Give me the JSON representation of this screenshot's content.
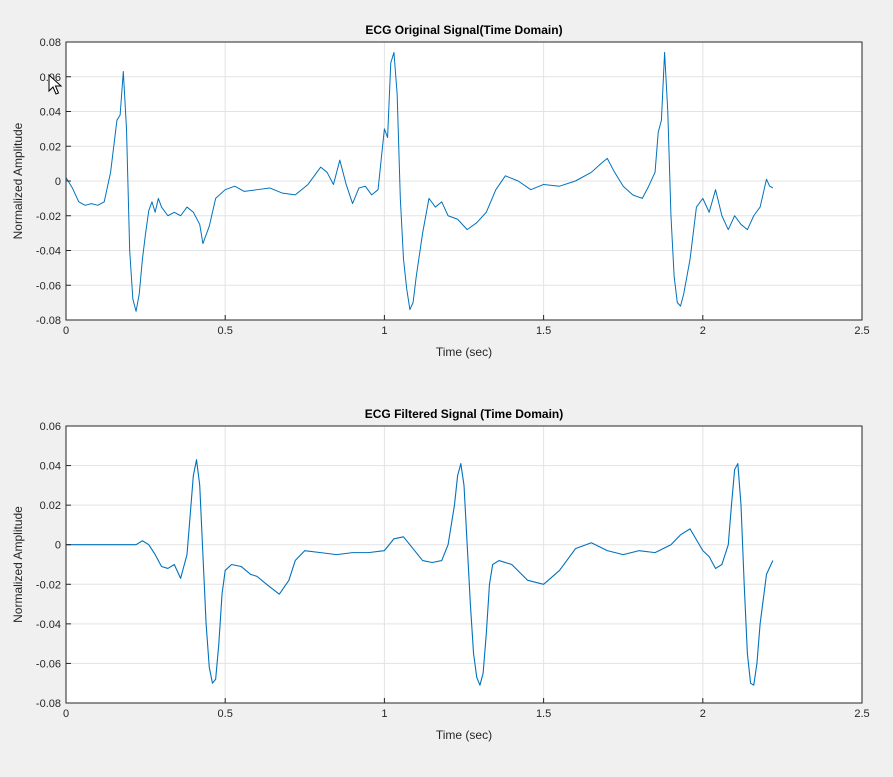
{
  "colors": {
    "figure_bg": "#f0f0f0",
    "axes_bg": "#ffffff",
    "line": "#0072bd",
    "grid": "#e3e3e3",
    "axis": "#262626"
  },
  "chart_data": [
    {
      "type": "line",
      "title": "ECG Original Signal(Time Domain)",
      "xlabel": "Time (sec)",
      "ylabel": "Normalized Amplitude",
      "xlim": [
        0,
        2.5
      ],
      "ylim": [
        -0.08,
        0.08
      ],
      "xticks": [
        0,
        0.5,
        1,
        1.5,
        2,
        2.5
      ],
      "xtick_labels": [
        "0",
        "0.5",
        "1",
        "1.5",
        "2",
        "2.5"
      ],
      "yticks": [
        -0.08,
        -0.06,
        -0.04,
        -0.02,
        0,
        0.02,
        0.04,
        0.06,
        0.08
      ],
      "ytick_labels": [
        "-0.08",
        "-0.06",
        "-0.04",
        "-0.02",
        "0",
        "0.02",
        "0.04",
        "0.06",
        "0.08"
      ],
      "grid": true,
      "series": [
        {
          "x": [
            0,
            0.02,
            0.04,
            0.06,
            0.08,
            0.1,
            0.12,
            0.14,
            0.16,
            0.17,
            0.18,
            0.19,
            0.2,
            0.21,
            0.22,
            0.23,
            0.24,
            0.25,
            0.26,
            0.27,
            0.28,
            0.29,
            0.3,
            0.32,
            0.34,
            0.36,
            0.38,
            0.4,
            0.42,
            0.43,
            0.45,
            0.47,
            0.5,
            0.53,
            0.56,
            0.6,
            0.64,
            0.68,
            0.72,
            0.76,
            0.8,
            0.82,
            0.84,
            0.86,
            0.88,
            0.9,
            0.92,
            0.94,
            0.96,
            0.98,
            1.0,
            1.01,
            1.02,
            1.03,
            1.04,
            1.05,
            1.06,
            1.07,
            1.08,
            1.09,
            1.1,
            1.12,
            1.14,
            1.16,
            1.18,
            1.2,
            1.23,
            1.26,
            1.29,
            1.32,
            1.35,
            1.38,
            1.42,
            1.46,
            1.5,
            1.55,
            1.6,
            1.65,
            1.68,
            1.7,
            1.72,
            1.75,
            1.78,
            1.81,
            1.83,
            1.85,
            1.86,
            1.87,
            1.88,
            1.89,
            1.9,
            1.91,
            1.92,
            1.93,
            1.94,
            1.96,
            1.98,
            2.0,
            2.02,
            2.04,
            2.06,
            2.08,
            2.1,
            2.12,
            2.14,
            2.16,
            2.18,
            2.2,
            2.21,
            2.22
          ],
          "y": [
            0.002,
            -0.004,
            -0.012,
            -0.014,
            -0.013,
            -0.014,
            -0.012,
            0.005,
            0.035,
            0.038,
            0.063,
            0.03,
            -0.04,
            -0.068,
            -0.075,
            -0.065,
            -0.045,
            -0.03,
            -0.017,
            -0.012,
            -0.018,
            -0.01,
            -0.015,
            -0.02,
            -0.018,
            -0.02,
            -0.015,
            -0.018,
            -0.025,
            -0.036,
            -0.026,
            -0.01,
            -0.005,
            -0.003,
            -0.006,
            -0.005,
            -0.004,
            -0.007,
            -0.008,
            -0.002,
            0.008,
            0.005,
            -0.002,
            0.012,
            -0.002,
            -0.013,
            -0.004,
            -0.003,
            -0.008,
            -0.005,
            0.03,
            0.025,
            0.068,
            0.074,
            0.05,
            -0.01,
            -0.045,
            -0.062,
            -0.074,
            -0.07,
            -0.055,
            -0.03,
            -0.01,
            -0.015,
            -0.012,
            -0.02,
            -0.022,
            -0.028,
            -0.024,
            -0.018,
            -0.005,
            0.003,
            0.0,
            -0.005,
            -0.002,
            -0.003,
            0.0,
            0.005,
            0.01,
            0.013,
            0.006,
            -0.003,
            -0.008,
            -0.01,
            -0.003,
            0.005,
            0.028,
            0.035,
            0.074,
            0.04,
            -0.02,
            -0.055,
            -0.07,
            -0.072,
            -0.065,
            -0.045,
            -0.015,
            -0.01,
            -0.018,
            -0.005,
            -0.02,
            -0.028,
            -0.02,
            -0.025,
            -0.028,
            -0.02,
            -0.015,
            0.001,
            -0.003,
            -0.004
          ]
        }
      ]
    },
    {
      "type": "line",
      "title": "ECG Filtered Signal (Time Domain)",
      "xlabel": "Time (sec)",
      "ylabel": "Normalized Amplitude",
      "xlim": [
        0,
        2.5
      ],
      "ylim": [
        -0.08,
        0.06
      ],
      "xticks": [
        0,
        0.5,
        1,
        1.5,
        2,
        2.5
      ],
      "xtick_labels": [
        "0",
        "0.5",
        "1",
        "1.5",
        "2",
        "2.5"
      ],
      "yticks": [
        -0.08,
        -0.06,
        -0.04,
        -0.02,
        0,
        0.02,
        0.04,
        0.06
      ],
      "ytick_labels": [
        "-0.08",
        "-0.06",
        "-0.04",
        "-0.02",
        "0",
        "0.02",
        "0.04",
        "0.06"
      ],
      "grid": true,
      "series": [
        {
          "x": [
            0,
            0.1,
            0.2,
            0.22,
            0.24,
            0.26,
            0.28,
            0.3,
            0.32,
            0.34,
            0.36,
            0.38,
            0.39,
            0.4,
            0.41,
            0.42,
            0.43,
            0.44,
            0.45,
            0.46,
            0.47,
            0.48,
            0.49,
            0.5,
            0.52,
            0.55,
            0.58,
            0.6,
            0.63,
            0.67,
            0.7,
            0.72,
            0.75,
            0.8,
            0.85,
            0.9,
            0.95,
            1.0,
            1.03,
            1.06,
            1.09,
            1.12,
            1.15,
            1.18,
            1.2,
            1.22,
            1.23,
            1.24,
            1.25,
            1.26,
            1.27,
            1.28,
            1.29,
            1.3,
            1.31,
            1.32,
            1.33,
            1.34,
            1.36,
            1.4,
            1.45,
            1.5,
            1.55,
            1.6,
            1.65,
            1.7,
            1.75,
            1.8,
            1.85,
            1.9,
            1.93,
            1.96,
            2.0,
            2.02,
            2.04,
            2.06,
            2.08,
            2.09,
            2.1,
            2.11,
            2.12,
            2.13,
            2.14,
            2.15,
            2.16,
            2.17,
            2.18,
            2.2,
            2.22
          ],
          "y": [
            0,
            0,
            0,
            0.0,
            0.002,
            0.0,
            -0.005,
            -0.011,
            -0.012,
            -0.01,
            -0.017,
            -0.005,
            0.015,
            0.035,
            0.043,
            0.03,
            -0.005,
            -0.04,
            -0.062,
            -0.07,
            -0.068,
            -0.05,
            -0.025,
            -0.013,
            -0.01,
            -0.011,
            -0.015,
            -0.016,
            -0.02,
            -0.025,
            -0.018,
            -0.008,
            -0.003,
            -0.004,
            -0.005,
            -0.004,
            -0.004,
            -0.003,
            0.003,
            0.004,
            -0.002,
            -0.008,
            -0.009,
            -0.008,
            0.0,
            0.02,
            0.035,
            0.041,
            0.03,
            0.0,
            -0.03,
            -0.055,
            -0.067,
            -0.071,
            -0.065,
            -0.045,
            -0.02,
            -0.01,
            -0.008,
            -0.01,
            -0.018,
            -0.02,
            -0.013,
            -0.002,
            0.001,
            -0.003,
            -0.005,
            -0.003,
            -0.004,
            0.0,
            0.005,
            0.008,
            -0.003,
            -0.006,
            -0.012,
            -0.01,
            0.0,
            0.02,
            0.038,
            0.041,
            0.02,
            -0.02,
            -0.055,
            -0.07,
            -0.071,
            -0.06,
            -0.04,
            -0.015,
            -0.008
          ]
        }
      ]
    }
  ]
}
